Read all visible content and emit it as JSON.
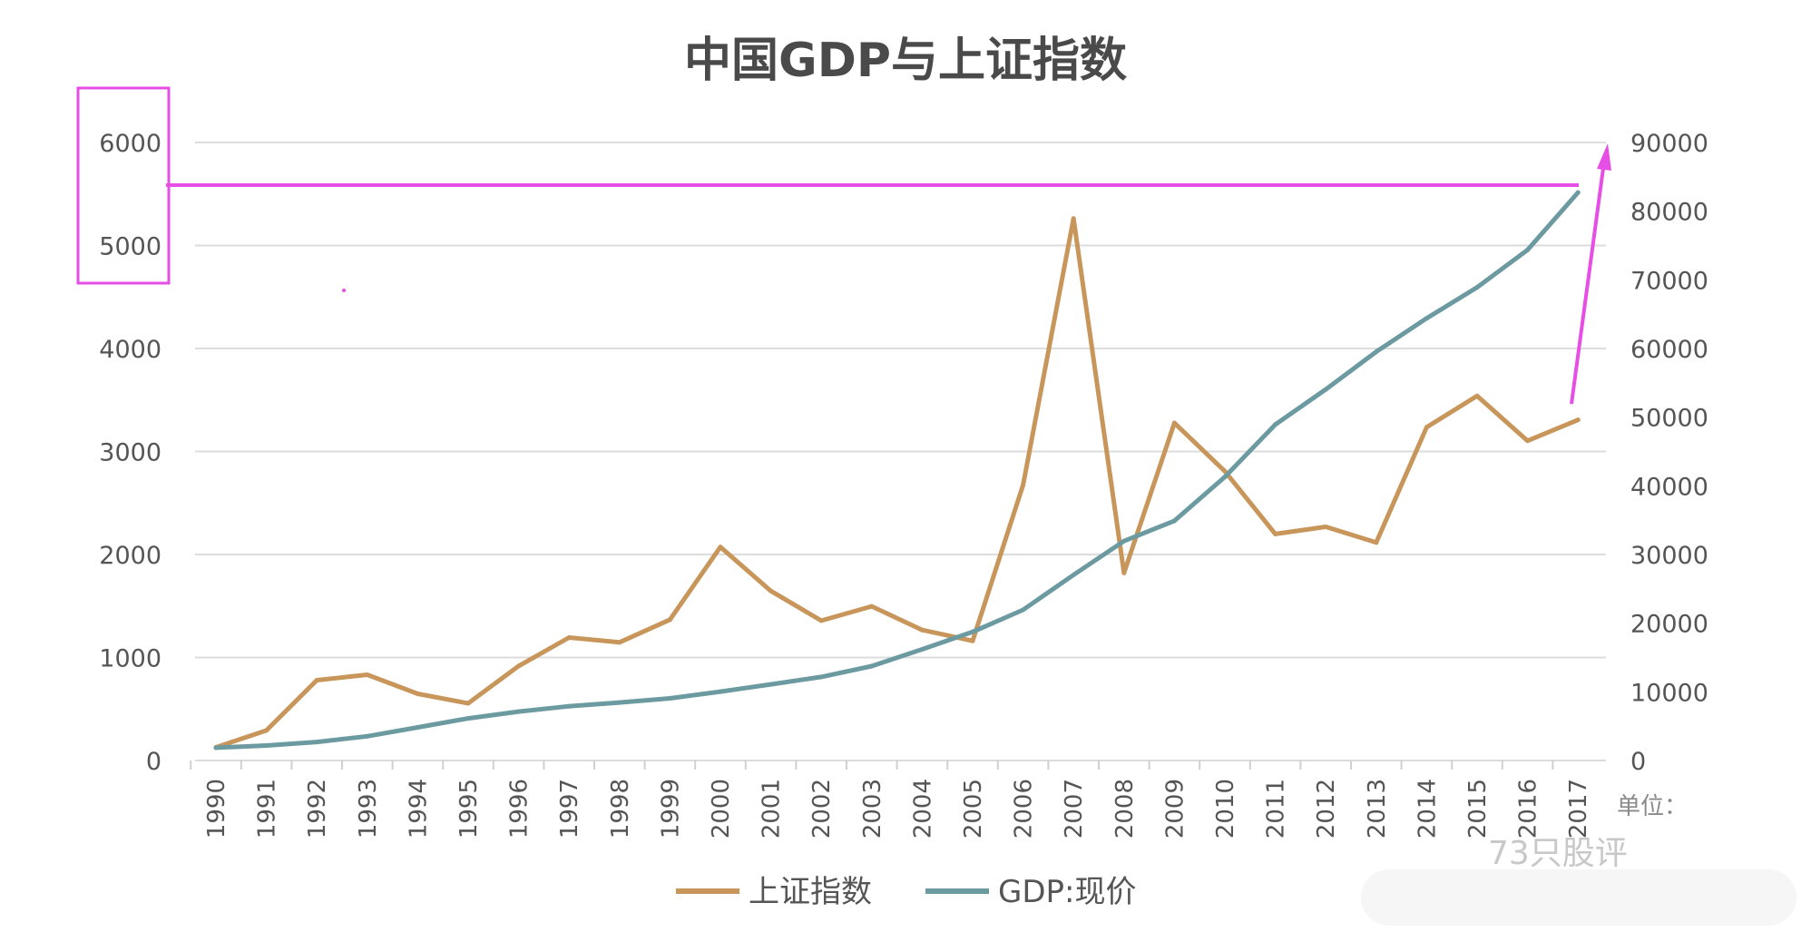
{
  "chart_data": {
    "type": "line",
    "title": "中国GDP与上证指数",
    "categories": [
      "1990",
      "1991",
      "1992",
      "1993",
      "1994",
      "1995",
      "1996",
      "1997",
      "1998",
      "1999",
      "2000",
      "2001",
      "2002",
      "2003",
      "2004",
      "2005",
      "2006",
      "2007",
      "2008",
      "2009",
      "2010",
      "2011",
      "2012",
      "2013",
      "2014",
      "2015",
      "2016",
      "2017"
    ],
    "y_left": {
      "min": 0,
      "max": 6000,
      "ticks": [
        "0",
        "1000",
        "2000",
        "3000",
        "4000",
        "5000",
        "6000"
      ]
    },
    "y_right": {
      "min": 0,
      "max": 90000,
      "ticks": [
        "0",
        "10000",
        "20000",
        "30000",
        "40000",
        "50000",
        "60000",
        "70000",
        "80000",
        "90000"
      ]
    },
    "series": [
      {
        "name": "上证指数",
        "axis": "left",
        "color": "#c8965a",
        "values": [
          128,
          292,
          780,
          833,
          648,
          555,
          917,
          1194,
          1147,
          1367,
          2073,
          1646,
          1358,
          1497,
          1267,
          1161,
          2675,
          5262,
          1821,
          3277,
          2808,
          2199,
          2269,
          2116,
          3235,
          3539,
          3104,
          3307
        ]
      },
      {
        "name": "GDP:现价",
        "axis": "right",
        "color": "#6b9aa0",
        "values": [
          1866,
          2178,
          2692,
          3533,
          4820,
          6134,
          7117,
          7897,
          8440,
          9056,
          10028,
          11086,
          12172,
          13742,
          16184,
          18732,
          21944,
          27023,
          31952,
          34908,
          41303,
          48930,
          54037,
          59524,
          64397,
          68905,
          74359,
          82712
        ]
      }
    ],
    "grid": true,
    "legend_position": "bottom-center",
    "annotations": {
      "unit_label": "单位：",
      "watermark": "73只股评",
      "highlight_color": "#e64ee6"
    }
  }
}
